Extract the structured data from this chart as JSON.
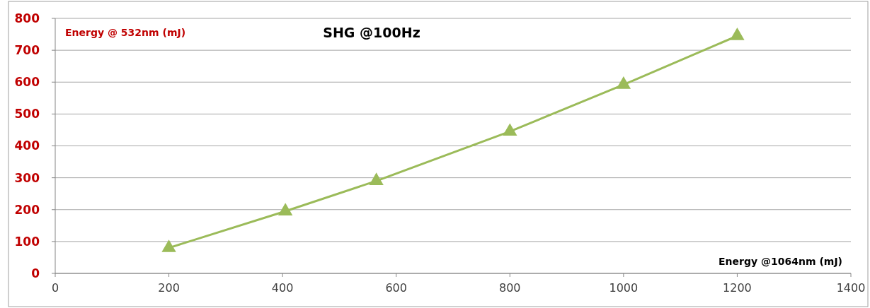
{
  "chart_data": {
    "type": "line",
    "title": "SHG @100Hz",
    "xlabel": "Energy @1064nm (mJ)",
    "ylabel": "Energy @ 532nm (mJ)",
    "x": [
      200,
      405,
      565,
      800,
      1000,
      1200
    ],
    "series": [
      {
        "color": "#9bbb59",
        "values": [
          80,
          195,
          290,
          445,
          592,
          745
        ]
      }
    ],
    "xlim": [
      0,
      1400
    ],
    "xticks": [
      0,
      200,
      400,
      600,
      800,
      1000,
      1200,
      1400
    ],
    "ylim": [
      0,
      800
    ],
    "yticks": [
      0,
      100,
      200,
      300,
      400,
      500,
      600,
      700,
      800
    ],
    "grid": "y",
    "marker": "triangle",
    "line_style": "solid"
  }
}
